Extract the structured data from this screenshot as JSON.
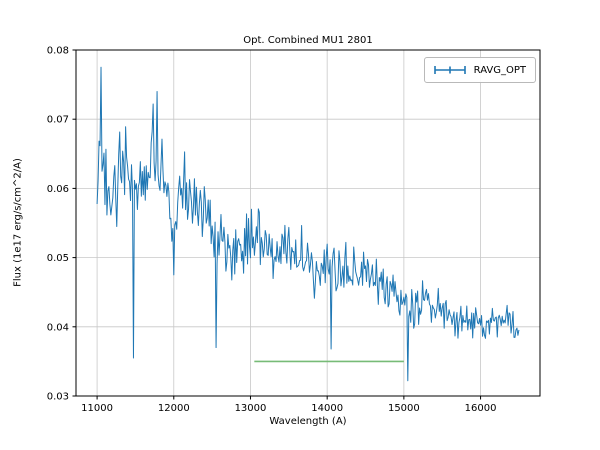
{
  "chart_data": {
    "type": "line",
    "title": "Opt. Combined MU1 2801",
    "xlabel": "Wavelength (A)",
    "ylabel": "Flux (1e17 erg/s/cm^2/A)",
    "xlim": [
      10725,
      16775
    ],
    "ylim": [
      0.03,
      0.08
    ],
    "xticks": [
      11000,
      12000,
      13000,
      14000,
      15000,
      16000
    ],
    "yticks": [
      0.03,
      0.04,
      0.05,
      0.06,
      0.07,
      0.08
    ],
    "grid": true,
    "legend": {
      "position": "upper right",
      "entries": [
        {
          "label": "RAVG_OPT",
          "color": "#1f77b4",
          "style": "errorbar"
        }
      ]
    },
    "colors": {
      "grid": "#c8c8c8",
      "spine": "#000000",
      "background": "#ffffff",
      "series_main": "#1f77b4",
      "series_flat": "#77bb77"
    },
    "series": [
      {
        "name": "RAVG_OPT",
        "color": "#1f77b4",
        "x_range": [
          11000,
          16500
        ],
        "n_points": 430,
        "seed": 20180428,
        "trend_x": [
          11000,
          11050,
          11150,
          11300,
          11400,
          11500,
          11600,
          11800,
          11900,
          12000,
          12100,
          12300,
          12500,
          12700,
          12900,
          13100,
          13300,
          13500,
          13700,
          13900,
          14100,
          14300,
          14500,
          14700,
          14900,
          15100,
          15300,
          15500,
          15700,
          15900,
          16100,
          16300,
          16500
        ],
        "trend_y": [
          0.058,
          0.066,
          0.057,
          0.061,
          0.063,
          0.058,
          0.062,
          0.065,
          0.059,
          0.056,
          0.06,
          0.059,
          0.053,
          0.051,
          0.051,
          0.053,
          0.051,
          0.052,
          0.05,
          0.049,
          0.049,
          0.049,
          0.047,
          0.046,
          0.045,
          0.042,
          0.044,
          0.042,
          0.041,
          0.041,
          0.04,
          0.041,
          0.04
        ],
        "noise_x": [
          11000,
          13000,
          15000,
          16500
        ],
        "noise_amp": [
          0.005,
          0.0038,
          0.0026,
          0.0019
        ],
        "spikes": [
          {
            "x": 11050,
            "y": 0.0775
          },
          {
            "x": 11470,
            "y": 0.0355
          },
          {
            "x": 11780,
            "y": 0.074
          },
          {
            "x": 12550,
            "y": 0.037
          },
          {
            "x": 14050,
            "y": 0.0368
          },
          {
            "x": 15050,
            "y": 0.0322
          }
        ]
      },
      {
        "name": "flat-reference-segment",
        "color": "#77bb77",
        "x": [
          13050,
          15000
        ],
        "y": [
          0.035,
          0.035
        ]
      }
    ]
  }
}
